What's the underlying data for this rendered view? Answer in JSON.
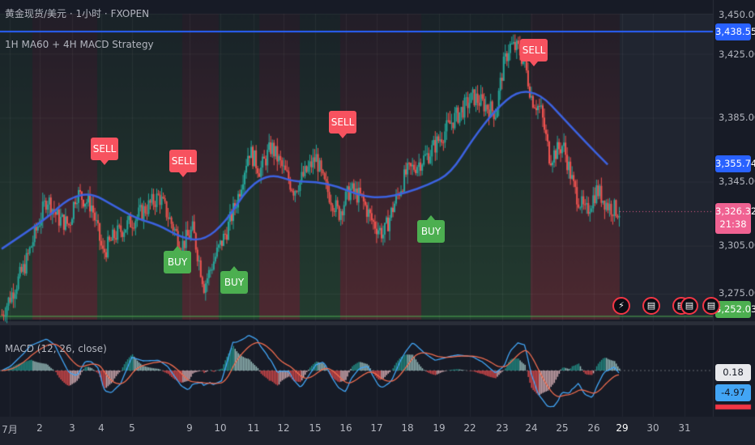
{
  "header": {
    "symbol_line": "黄金现货/美元 · 1小时 · FXOPEN",
    "strategy": "1H MA60 + 4H MACD Strategy",
    "macd": "MACD (12, 26, close)"
  },
  "price_scale": {
    "ticks": [
      "3,450.00",
      "3,425.00",
      "3,385.00",
      "3,345.00",
      "3,305.00",
      "3,275.00"
    ],
    "badges": {
      "high": "3,438.55",
      "ma": "3,355.74",
      "last": "3,326.32",
      "countdown": "21:38",
      "low": "3,252.03"
    }
  },
  "macd_scale": {
    "macd_value": "0.18",
    "signal_value": "-4.97"
  },
  "time_axis": [
    "7月",
    "2",
    "3",
    "4",
    "5",
    "9",
    "10",
    "11",
    "12",
    "15",
    "16",
    "17",
    "18",
    "19",
    "22",
    "23",
    "24",
    "25",
    "26",
    "29",
    "30",
    "31"
  ],
  "signals": [
    {
      "type": "sell",
      "label": "SELL"
    },
    {
      "type": "sell",
      "label": "SELL"
    },
    {
      "type": "buy",
      "label": "BUY"
    },
    {
      "type": "buy",
      "label": "BUY"
    },
    {
      "type": "sell",
      "label": "SELL"
    },
    {
      "type": "buy",
      "label": "BUY"
    },
    {
      "type": "sell",
      "label": "SELL"
    }
  ],
  "events": {
    "flash_icon": "lightning-icon",
    "flag_icon": "us-flag-icon"
  },
  "colors": {
    "up": "#26a69a",
    "down": "#ef5350",
    "ma": "#3c62e0",
    "macd": "#42a5f5",
    "signal": "#ef6c4f",
    "sell": "#f7525f",
    "buy": "#4caf50"
  },
  "chart_data": {
    "type": "candlestick",
    "interval": "1H",
    "price_range": [
      3252.03,
      3450
    ],
    "high_line": 3438.55,
    "last_price": 3326.32,
    "ma60_last": 3355.74,
    "macd_last": 0.18,
    "signal_last": -4.97,
    "close_path": [
      [
        1,
        3262
      ],
      [
        2,
        3292
      ],
      [
        3,
        3335
      ],
      [
        3.5,
        3322
      ],
      [
        4,
        3318
      ],
      [
        4.3,
        3338
      ],
      [
        4.5,
        3336
      ],
      [
        5,
        3330
      ],
      [
        5.5,
        3300
      ],
      [
        6,
        3311
      ],
      [
        7,
        3323
      ],
      [
        8,
        3336
      ],
      [
        9,
        3305
      ],
      [
        9.5,
        3315
      ],
      [
        10,
        3280
      ],
      [
        10.5,
        3298
      ],
      [
        11,
        3314
      ],
      [
        11.5,
        3335
      ],
      [
        12,
        3365
      ],
      [
        12.5,
        3352
      ],
      [
        13,
        3367
      ],
      [
        14,
        3340
      ],
      [
        15,
        3360
      ],
      [
        15.3,
        3345
      ],
      [
        16,
        3325
      ],
      [
        16.5,
        3340
      ],
      [
        17,
        3335
      ],
      [
        17.5,
        3320
      ],
      [
        18,
        3312
      ],
      [
        18.5,
        3332
      ],
      [
        19,
        3350
      ],
      [
        20,
        3362
      ],
      [
        21,
        3382
      ],
      [
        22,
        3398
      ],
      [
        23,
        3388
      ],
      [
        23.3,
        3415
      ],
      [
        23.6,
        3430
      ],
      [
        24,
        3428
      ],
      [
        24.3,
        3418
      ],
      [
        24.6,
        3397
      ],
      [
        25,
        3390
      ],
      [
        25.4,
        3360
      ],
      [
        26,
        3368
      ],
      [
        26.5,
        3340
      ],
      [
        27,
        3325
      ],
      [
        27.5,
        3340
      ],
      [
        28,
        3330
      ],
      [
        28.5,
        3326.32
      ]
    ],
    "ma60_path": [
      [
        1,
        3303
      ],
      [
        3,
        3322
      ],
      [
        4,
        3335
      ],
      [
        5,
        3338
      ],
      [
        6,
        3330
      ],
      [
        7,
        3322
      ],
      [
        8,
        3318
      ],
      [
        9,
        3310
      ],
      [
        10,
        3308
      ],
      [
        11,
        3320
      ],
      [
        12,
        3342
      ],
      [
        13,
        3350
      ],
      [
        14,
        3345
      ],
      [
        15,
        3345
      ],
      [
        16,
        3342
      ],
      [
        17,
        3336
      ],
      [
        18,
        3335
      ],
      [
        19,
        3338
      ],
      [
        20,
        3343
      ],
      [
        21,
        3350
      ],
      [
        22,
        3372
      ],
      [
        23,
        3390
      ],
      [
        24,
        3402
      ],
      [
        25,
        3400
      ],
      [
        26,
        3385
      ],
      [
        27,
        3370
      ],
      [
        28,
        3355.74
      ]
    ],
    "signals": [
      {
        "type": "sell",
        "price": 3355
      },
      {
        "type": "sell",
        "price": 3346
      },
      {
        "type": "buy",
        "price": 3300
      },
      {
        "type": "buy",
        "price": 3285
      },
      {
        "type": "sell",
        "price": 3368
      },
      {
        "type": "buy",
        "price": 3313
      },
      {
        "type": "sell",
        "price": 3427
      }
    ]
  }
}
